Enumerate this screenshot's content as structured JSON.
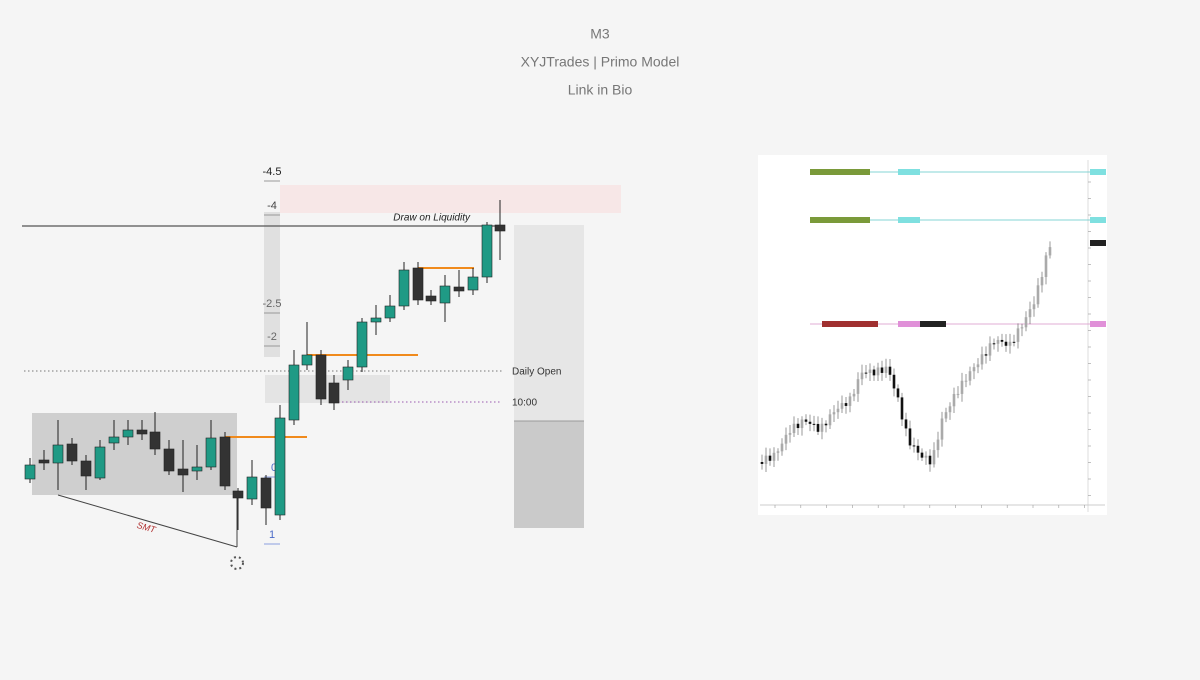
{
  "header": {
    "title": "M3",
    "subtitle": "XYJTrades | Primo Model",
    "note": "Link in Bio"
  },
  "left_chart": {
    "fib_levels": [
      "-4.5",
      "-4",
      "-2.5",
      "-2",
      "0",
      "1"
    ],
    "annotations": {
      "draw_on_liquidity": "Draw on Liquidity",
      "daily_open": "Daily Open",
      "time": "10:00",
      "smt": "SMT"
    }
  }
}
